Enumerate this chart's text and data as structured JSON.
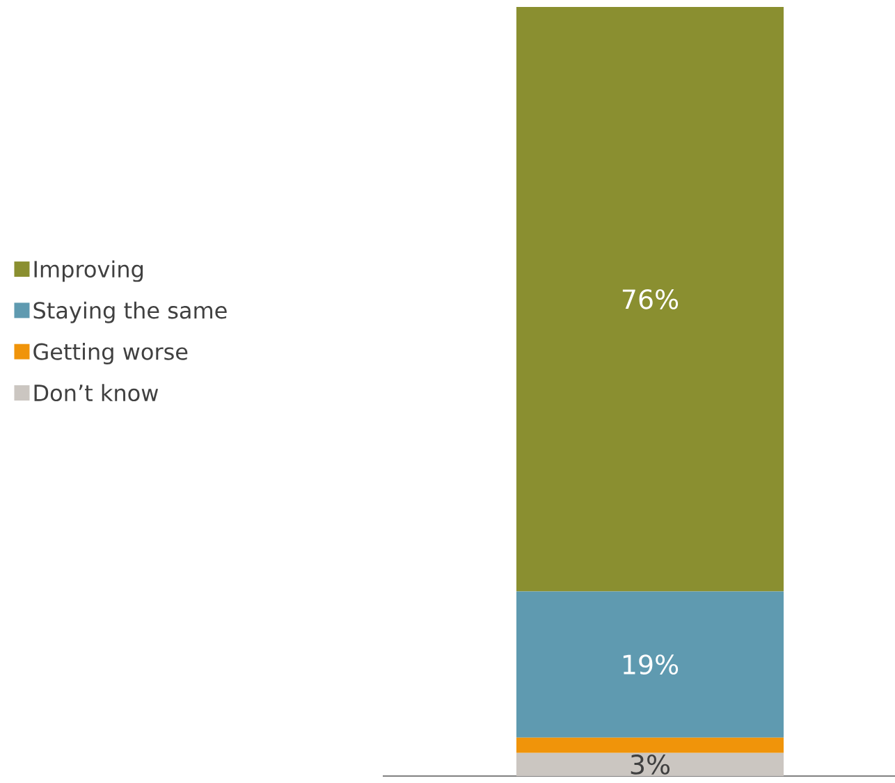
{
  "chart_data": {
    "type": "bar",
    "stacked": true,
    "categories": [
      null
    ],
    "legend": "left",
    "series": [
      {
        "name": "Don’t know",
        "color": "#cbc6c1",
        "values": [
          3
        ],
        "value_labels": [
          "3%"
        ]
      },
      {
        "name": "Getting worse",
        "color": "#f0940a",
        "values": [
          2
        ],
        "value_labels": [
          null
        ]
      },
      {
        "name": "Staying the same",
        "color": "#5f9ab0",
        "values": [
          19
        ],
        "value_labels": [
          "19%"
        ]
      },
      {
        "name": "Improving",
        "color": "#8a8f30",
        "values": [
          76
        ],
        "value_labels": [
          "76%"
        ]
      }
    ]
  }
}
